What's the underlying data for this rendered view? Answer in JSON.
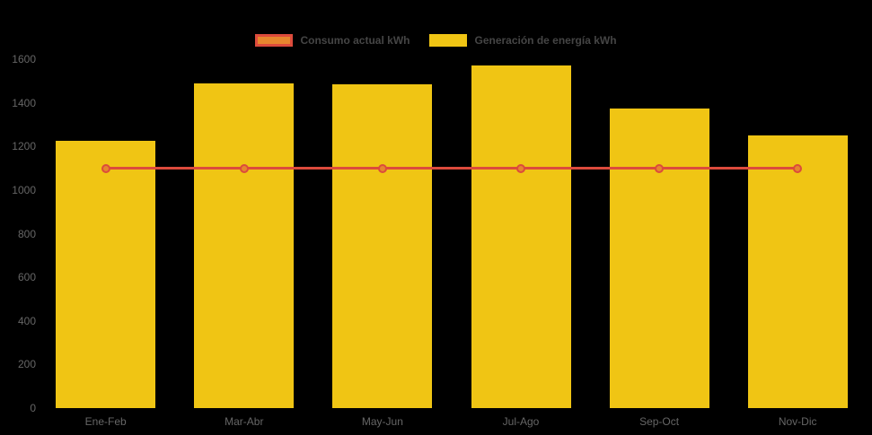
{
  "page": {
    "background": "#000000"
  },
  "colors": {
    "bar_fill": "#F0C514",
    "line_stroke": "#DC4B3C",
    "point_fill": "#E6862E",
    "axis_text": "#666666",
    "legend_text": "#454545"
  },
  "legend": {
    "position": "top",
    "items": [
      {
        "label": "Consumo actual kWh",
        "swatch_fill": "#E6862E",
        "swatch_border": "#DC4B3C"
      },
      {
        "label": "Generación de energía kWh",
        "swatch_fill": "#F0C514",
        "swatch_border": "#F0C514"
      }
    ]
  },
  "chart_data": {
    "type": "bar",
    "title": "",
    "xlabel": "",
    "ylabel": "",
    "categories": [
      "Ene-Feb",
      "Mar-Abr",
      "May-Jun",
      "Jul-Ago",
      "Sep-Oct",
      "Nov-Dic"
    ],
    "series": [
      {
        "name": "Consumo actual kWh",
        "type": "line",
        "color": "#DC4B3C",
        "point_color": "#E6862E",
        "values": [
          1100,
          1100,
          1100,
          1100,
          1100,
          1100
        ]
      },
      {
        "name": "Generación de energía kWh",
        "type": "bar",
        "color": "#F0C514",
        "values": [
          1225,
          1490,
          1485,
          1570,
          1375,
          1250
        ]
      }
    ],
    "ylim": [
      0,
      1600
    ],
    "ytick_step": 200,
    "yticks": [
      0,
      200,
      400,
      600,
      800,
      1000,
      1200,
      1400,
      1600
    ],
    "grid": false,
    "legend_position": "top-center"
  }
}
